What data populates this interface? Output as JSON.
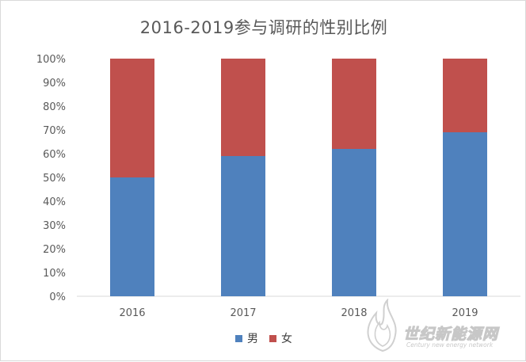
{
  "chart_data": {
    "type": "bar",
    "stacked": true,
    "title": "2016-2019参与调研的性别比例",
    "categories": [
      "2016",
      "2017",
      "2018",
      "2019"
    ],
    "series": [
      {
        "name": "男",
        "color": "#4f81bd",
        "values": [
          50,
          59,
          62,
          69
        ]
      },
      {
        "name": "女",
        "color": "#c0504d",
        "values": [
          50,
          41,
          38,
          31
        ]
      }
    ],
    "y_ticks": [
      "0%",
      "10%",
      "20%",
      "30%",
      "40%",
      "50%",
      "60%",
      "70%",
      "80%",
      "90%",
      "100%"
    ],
    "ylim": [
      0,
      100
    ],
    "grid": false,
    "legend": "bottom"
  },
  "watermark": {
    "text": "世纪新能源网",
    "subtext": "Century new energy network"
  }
}
